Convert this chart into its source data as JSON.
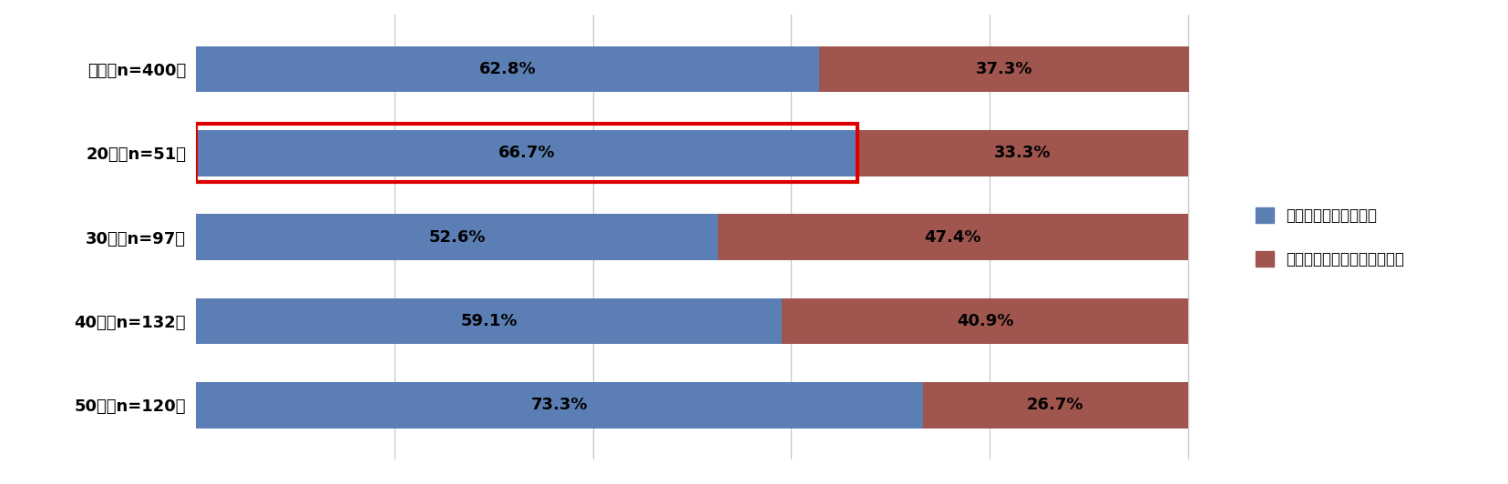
{
  "categories": [
    "全体（n=400）",
    "20代（n=51）",
    "30代（n=97）",
    "40代（n=132）",
    "50代（n=120）"
  ],
  "blue_values": [
    62.8,
    66.7,
    52.6,
    59.1,
    73.3
  ],
  "red_values": [
    37.3,
    33.3,
    47.4,
    40.9,
    26.7
  ],
  "blue_color": "#5B7FB5",
  "red_color": "#A0554E",
  "bar_height": 0.55,
  "legend_labels": [
    "愛情をもって怒る上司",
    "決して怒らないドライな上司"
  ],
  "fig_bg_color": "#FFFFFF",
  "plot_bg_color": "#FFFFFF",
  "text_color": "#000000",
  "label_fontsize": 13,
  "tick_fontsize": 13,
  "highlight_row": 1,
  "highlight_color": "#DD0000",
  "xlim": [
    0,
    105
  ],
  "bar_xlim": 100,
  "grid_color": "#CCCCCC",
  "grid_vals": [
    20,
    40,
    60,
    80,
    100
  ],
  "legend_fontsize": 12,
  "highlight_lw": 3
}
